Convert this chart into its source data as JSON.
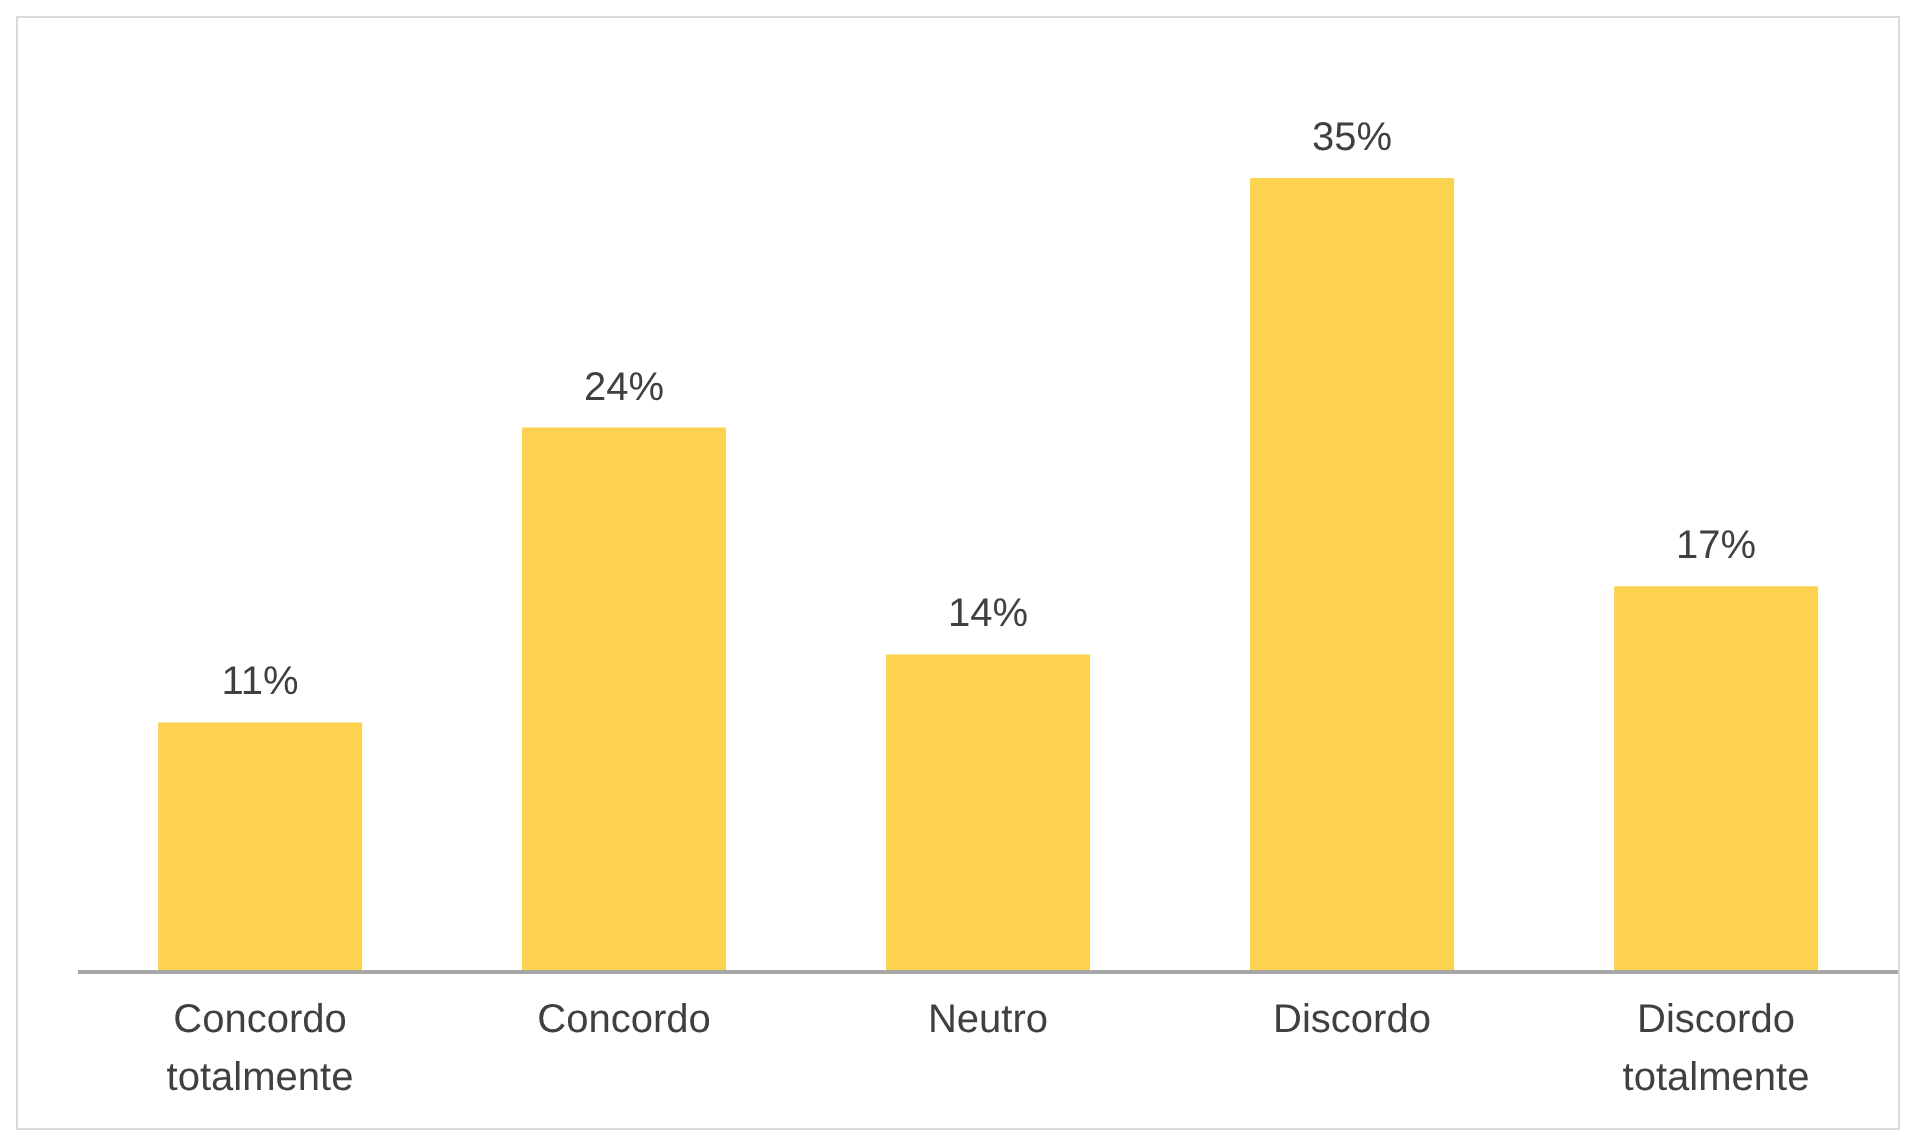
{
  "chart_data": {
    "type": "bar",
    "categories": [
      "Concordo totalmente",
      "Concordo",
      "Neutro",
      "Discordo",
      "Discordo totalmente"
    ],
    "values": [
      11,
      24,
      14,
      35,
      17
    ],
    "value_labels": [
      "11%",
      "24%",
      "14%",
      "35%",
      "17%"
    ],
    "color": "#fdd24e",
    "grid": false,
    "legend": false
  }
}
